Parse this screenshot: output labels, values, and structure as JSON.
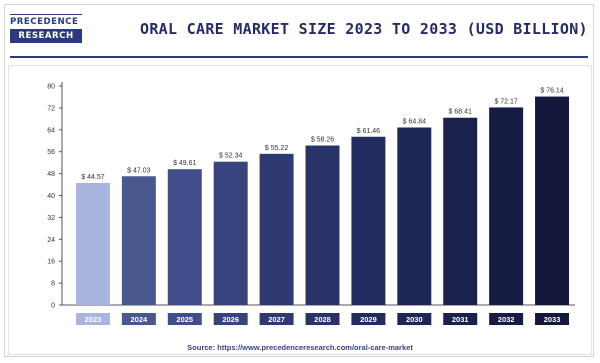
{
  "logo": {
    "top_text": "PRECEDENCE",
    "bottom_text": "RESEARCH"
  },
  "title": "ORAL CARE MARKET SIZE 2023 TO 2033 (USD BILLION)",
  "source": "Source: https://www.precedenceresearch.com/oral-care-market",
  "chart_data": {
    "type": "bar",
    "title": "ORAL CARE MARKET SIZE 2023 TO 2033 (USD BILLION)",
    "xlabel": "",
    "ylabel": "",
    "categories": [
      "2023",
      "2024",
      "2025",
      "2026",
      "2027",
      "2028",
      "2029",
      "2030",
      "2031",
      "2032",
      "2033"
    ],
    "values": [
      44.57,
      47.03,
      49.61,
      52.34,
      55.22,
      58.26,
      61.46,
      64.84,
      68.41,
      72.17,
      76.14
    ],
    "value_labels": [
      "$ 44.57",
      "$ 47.03",
      "$ 49.61",
      "$ 52.34",
      "$ 55.22",
      "$ 58.26",
      "$ 61.46",
      "$ 64.84",
      "$ 68.41",
      "$ 72.17",
      "$ 76.14"
    ],
    "bar_colors": [
      "#a9b4df",
      "#49578f",
      "#424e8b",
      "#36437d",
      "#2f3a73",
      "#29336a",
      "#232c60",
      "#1e2656",
      "#1a214d",
      "#161c44",
      "#13183c"
    ],
    "ylim": [
      0,
      80
    ],
    "yticks": [
      0,
      8,
      16,
      24,
      32,
      40,
      48,
      56,
      64,
      72,
      80
    ],
    "grid": false,
    "legend": "none"
  }
}
